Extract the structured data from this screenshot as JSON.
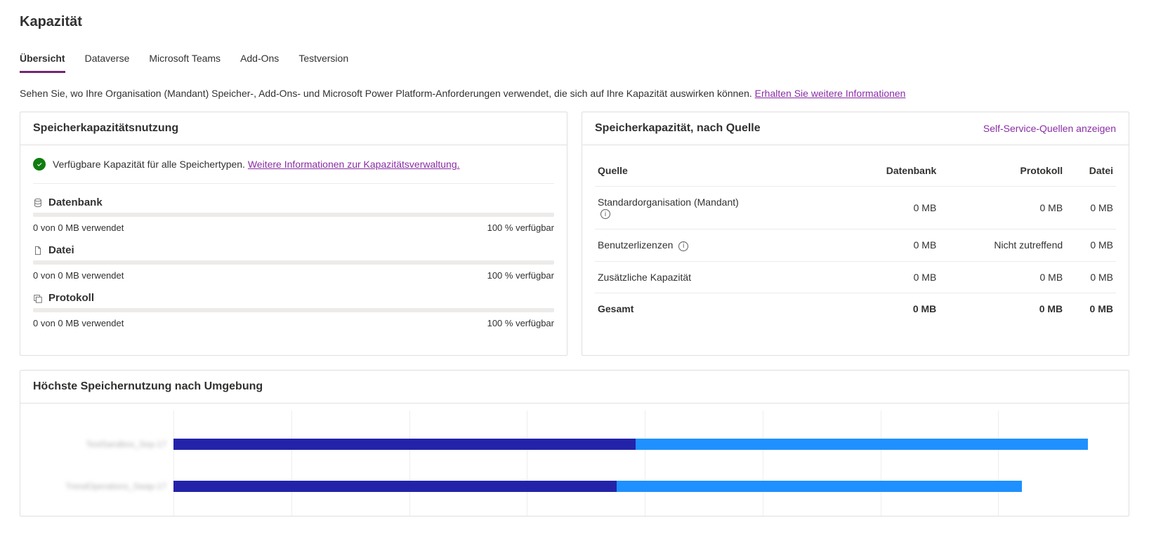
{
  "page_title": "Kapazität",
  "tabs": [
    {
      "label": "Übersicht",
      "active": true
    },
    {
      "label": "Dataverse",
      "active": false
    },
    {
      "label": "Microsoft Teams",
      "active": false
    },
    {
      "label": "Add-Ons",
      "active": false
    },
    {
      "label": "Testversion",
      "active": false
    }
  ],
  "intro_text": "Sehen Sie, wo Ihre Organisation (Mandant) Speicher-, Add-Ons- und Microsoft Power Platform-Anforderungen verwendet, die sich auf Ihre Kapazität auswirken können. ",
  "intro_link": "Erhalten Sie weitere Informationen",
  "usage_card": {
    "title": "Speicherkapazitätsnutzung",
    "status_text": "Verfügbare Kapazität für alle Speichertypen. ",
    "status_link": "Weitere Informationen zur Kapazitätsverwaltung.",
    "items": [
      {
        "icon": "database",
        "label": "Datenbank",
        "used": "0 von 0 MB verwendet",
        "avail": "100 % verfügbar"
      },
      {
        "icon": "file",
        "label": "Datei",
        "used": "0 von 0 MB verwendet",
        "avail": "100 % verfügbar"
      },
      {
        "icon": "log",
        "label": "Protokoll",
        "used": "0 von 0 MB verwendet",
        "avail": "100 % verfügbar"
      }
    ]
  },
  "source_card": {
    "title": "Speicherkapazität, nach Quelle",
    "action": "Self-Service-Quellen anzeigen",
    "columns": [
      "Quelle",
      "Datenbank",
      "Protokoll",
      "Datei"
    ],
    "rows": [
      {
        "label": "Standardorganisation (Mandant)",
        "has_info": true,
        "db": "0 MB",
        "log": "0 MB",
        "file": "0 MB"
      },
      {
        "label": "Benutzerlizenzen",
        "has_info": true,
        "db": "0 MB",
        "log": "Nicht zutreffend",
        "file": "0 MB"
      },
      {
        "label": "Zusätzliche Kapazität",
        "has_info": false,
        "db": "0 MB",
        "log": "0 MB",
        "file": "0 MB"
      }
    ],
    "total": {
      "label": "Gesamt",
      "db": "0 MB",
      "log": "0 MB",
      "file": "0 MB"
    }
  },
  "chart_card": {
    "title": "Höchste Speichernutzung nach Umgebung",
    "bars": [
      {
        "label": "TestSandbox_Sep-17",
        "segments": [
          {
            "color": "#2323aa",
            "pct": 49
          },
          {
            "color": "#1e90ff",
            "pct": 48
          }
        ]
      },
      {
        "label": "TrendOperations_Swap-17",
        "segments": [
          {
            "color": "#2323aa",
            "pct": 47
          },
          {
            "color": "#1e90ff",
            "pct": 43
          }
        ]
      }
    ],
    "gridlines": 8,
    "grid_color": "#eeeeee"
  },
  "colors": {
    "accent": "#742774",
    "link": "#8a2da5",
    "success": "#107c10",
    "bar_depth1": "#2323aa",
    "bar_depth2": "#1e90ff"
  }
}
